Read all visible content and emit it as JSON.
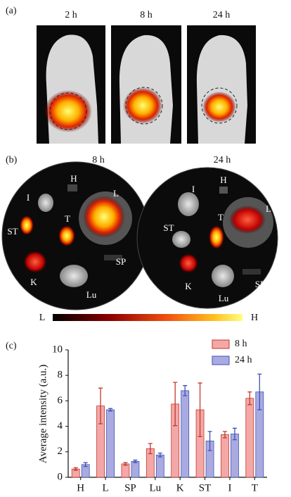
{
  "panel_a": {
    "label": "(a)",
    "times": [
      "2 h",
      "8 h",
      "24 h"
    ]
  },
  "panel_b": {
    "label": "(b)",
    "images": [
      {
        "title": "8 h",
        "organs": [
          "H",
          "I",
          "L",
          "ST",
          "T",
          "K",
          "SP",
          "Lu"
        ]
      },
      {
        "title": "24 h",
        "organs": [
          "H",
          "I",
          "L",
          "ST",
          "T",
          "K",
          "SP",
          "Lu"
        ]
      }
    ],
    "colorbar": {
      "low": "L",
      "high": "H"
    }
  },
  "panel_c": {
    "label": "(c)"
  },
  "chart_data": {
    "type": "bar",
    "ylabel": "Average intensity (a.u.)",
    "categories": [
      "H",
      "L",
      "SP",
      "Lu",
      "K",
      "ST",
      "I",
      "T"
    ],
    "series": [
      {
        "name": "8 h",
        "color": "#f4a7a7",
        "edge_color": "#c0392b",
        "values": [
          0.65,
          5.6,
          1.05,
          2.25,
          5.75,
          5.3,
          3.35,
          6.2
        ],
        "errors": [
          0.1,
          1.4,
          0.1,
          0.4,
          1.7,
          2.1,
          0.25,
          0.5
        ]
      },
      {
        "name": "24 h",
        "color": "#a9abe0",
        "edge_color": "#3f51b5",
        "values": [
          1.0,
          5.3,
          1.25,
          1.75,
          6.8,
          2.85,
          3.4,
          6.7
        ],
        "errors": [
          0.15,
          0.1,
          0.1,
          0.15,
          0.4,
          0.75,
          0.45,
          1.4
        ]
      }
    ],
    "ylim": [
      0,
      10
    ],
    "yticks": [
      0,
      2,
      4,
      6,
      8,
      10
    ]
  }
}
